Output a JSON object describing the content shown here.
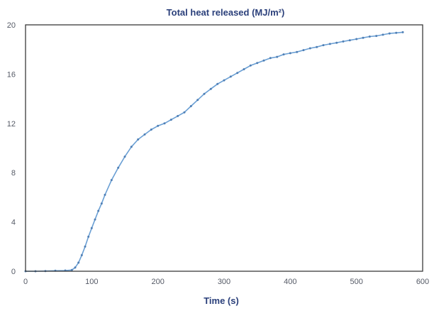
{
  "chart_data": {
    "type": "line",
    "title": "Total heat released (MJ/m²)",
    "xlabel": "Time (s)",
    "ylabel": "",
    "xlim": [
      0,
      600
    ],
    "ylim": [
      0,
      20
    ],
    "xticks": [
      0,
      100,
      200,
      300,
      400,
      500,
      600
    ],
    "yticks": [
      0,
      4,
      8,
      12,
      16,
      20
    ],
    "grid": false,
    "colors": {
      "line": "#6a9fd4",
      "marker": "#4f7fb5"
    },
    "series": [
      {
        "x": [
          0,
          15,
          30,
          45,
          60,
          70,
          75,
          80,
          85,
          90,
          95,
          100,
          105,
          110,
          115,
          120,
          130,
          140,
          150,
          160,
          170,
          180,
          190,
          200,
          210,
          220,
          230,
          240,
          250,
          260,
          270,
          280,
          290,
          300,
          310,
          320,
          330,
          340,
          350,
          360,
          370,
          380,
          390,
          400,
          410,
          420,
          430,
          440,
          450,
          460,
          470,
          480,
          490,
          500,
          510,
          520,
          530,
          540,
          550,
          560,
          570
        ],
        "y": [
          0,
          0,
          0.02,
          0.04,
          0.06,
          0.1,
          0.3,
          0.7,
          1.3,
          2.0,
          2.8,
          3.5,
          4.2,
          4.9,
          5.5,
          6.2,
          7.4,
          8.4,
          9.3,
          10.1,
          10.7,
          11.1,
          11.5,
          11.8,
          12.0,
          12.3,
          12.6,
          12.9,
          13.4,
          13.9,
          14.4,
          14.8,
          15.2,
          15.5,
          15.8,
          16.1,
          16.4,
          16.7,
          16.9,
          17.1,
          17.3,
          17.4,
          17.6,
          17.7,
          17.8,
          17.95,
          18.1,
          18.2,
          18.35,
          18.45,
          18.55,
          18.65,
          18.75,
          18.85,
          18.95,
          19.05,
          19.1,
          19.2,
          19.3,
          19.35,
          19.4
        ]
      }
    ]
  }
}
